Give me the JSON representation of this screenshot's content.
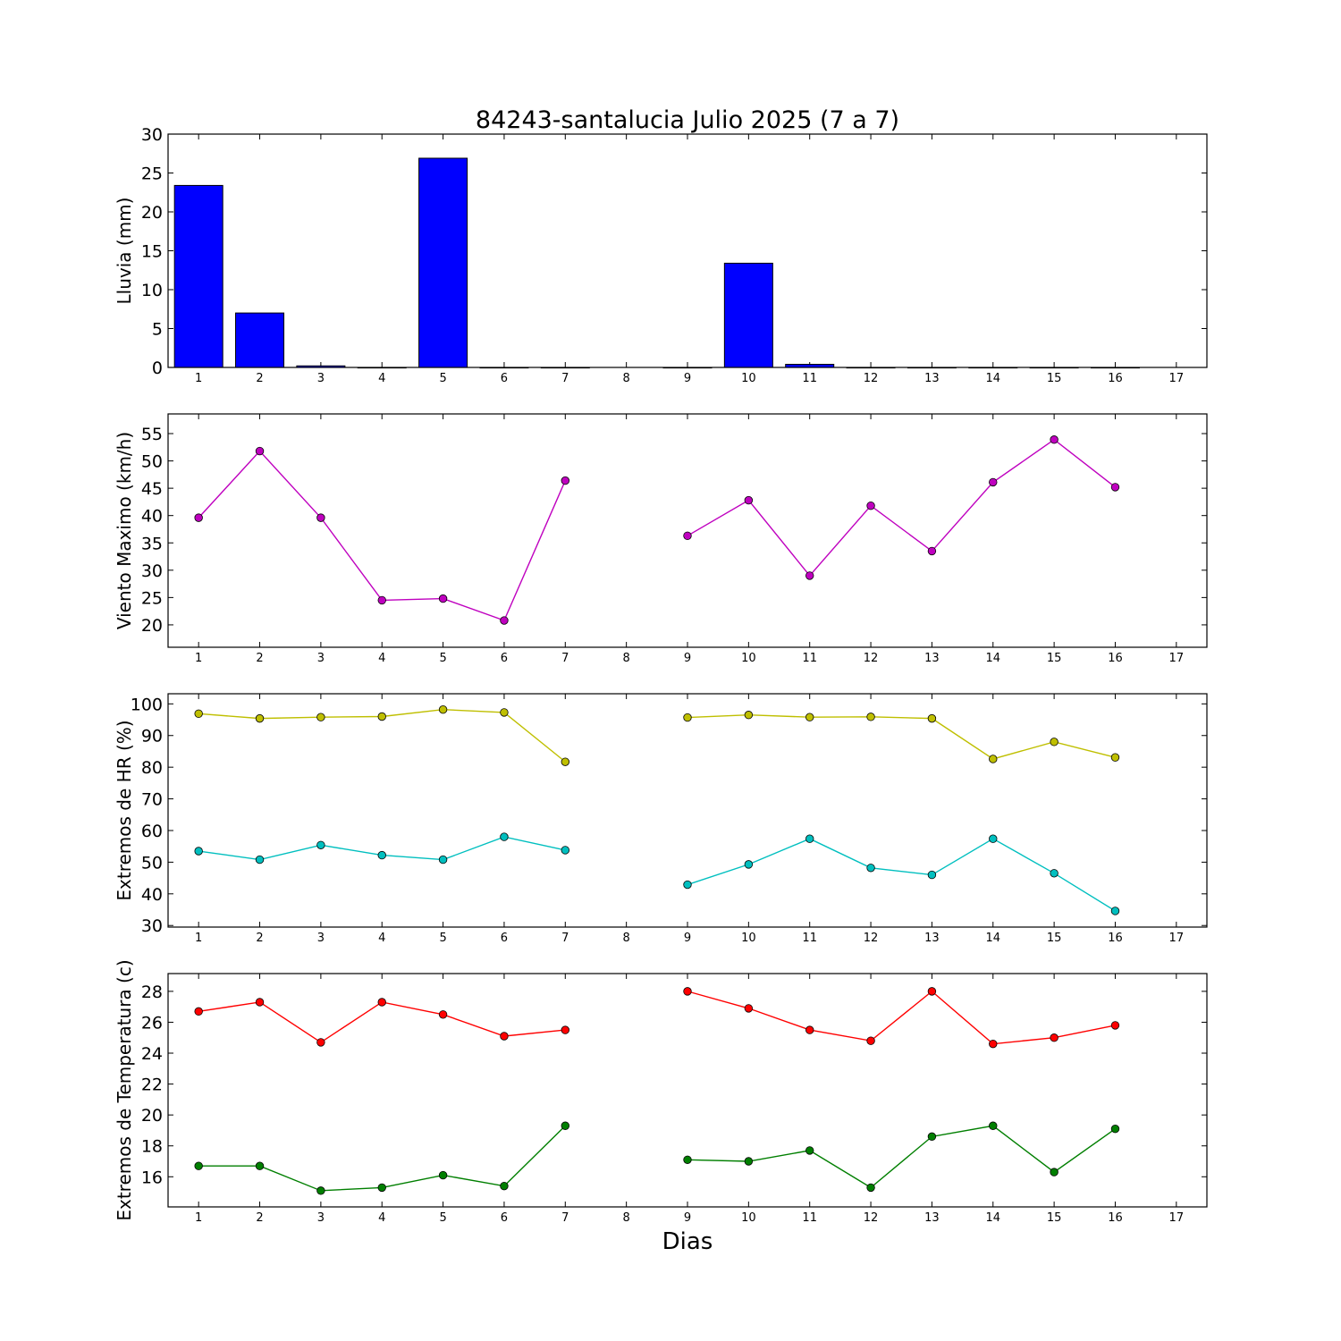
{
  "title": "84243-santalucia Julio 2025  (7 a 7)",
  "xlabel": "Dias",
  "chart_data": [
    {
      "type": "bar",
      "ylabel": "Lluvia (mm)",
      "x": [
        1,
        2,
        3,
        4,
        5,
        6,
        7,
        8,
        9,
        10,
        11,
        12,
        13,
        14,
        15,
        16,
        17
      ],
      "xticks": [
        1,
        2,
        3,
        4,
        5,
        6,
        7,
        8,
        9,
        10,
        11,
        12,
        13,
        14,
        15,
        16,
        17
      ],
      "xlim": [
        0.5,
        17.5
      ],
      "ylim": [
        0,
        30
      ],
      "yticks": [
        0,
        5,
        10,
        15,
        20,
        25,
        30
      ],
      "series": [
        {
          "values": [
            23.4,
            7.0,
            0.2,
            0.0,
            26.9,
            0.0,
            0.0,
            null,
            0.0,
            13.4,
            0.4,
            0.0,
            0.0,
            0.0,
            0.0,
            0.0,
            null
          ],
          "color": "#0000ff"
        }
      ]
    },
    {
      "type": "line",
      "ylabel": "Viento Maximo (km/h)",
      "x": [
        1,
        2,
        3,
        4,
        5,
        6,
        7,
        8,
        9,
        10,
        11,
        12,
        13,
        14,
        15,
        16
      ],
      "xticks": [
        1,
        2,
        3,
        4,
        5,
        6,
        7,
        8,
        9,
        10,
        11,
        12,
        13,
        14,
        15,
        16,
        17
      ],
      "xlim": [
        0.5,
        17.5
      ],
      "ylim": [
        15.9,
        58.6
      ],
      "yticks": [
        20,
        25,
        30,
        35,
        40,
        45,
        50,
        55
      ],
      "series": [
        {
          "values": [
            39.6,
            51.8,
            39.6,
            24.5,
            24.8,
            20.8,
            46.4,
            null,
            36.3,
            42.8,
            29.0,
            41.8,
            33.5,
            46.1,
            53.9,
            45.2
          ],
          "color": "#bf00bf"
        }
      ]
    },
    {
      "type": "line",
      "ylabel": "Extremos de HR (%)",
      "x": [
        1,
        2,
        3,
        4,
        5,
        6,
        7,
        8,
        9,
        10,
        11,
        12,
        13,
        14,
        15,
        16
      ],
      "xticks": [
        1,
        2,
        3,
        4,
        5,
        6,
        7,
        8,
        9,
        10,
        11,
        12,
        13,
        14,
        15,
        16,
        17
      ],
      "xlim": [
        0.5,
        17.5
      ],
      "ylim": [
        29.5,
        103.2
      ],
      "yticks": [
        30,
        40,
        50,
        60,
        70,
        80,
        90,
        100
      ],
      "series": [
        {
          "values": [
            96.9,
            95.4,
            95.8,
            96.0,
            98.2,
            97.3,
            81.7,
            null,
            95.7,
            96.5,
            95.8,
            95.9,
            95.4,
            82.6,
            88.0,
            83.1
          ],
          "color": "#bfbf00"
        },
        {
          "values": [
            53.5,
            50.8,
            55.4,
            52.2,
            50.8,
            58.0,
            53.8,
            null,
            42.9,
            49.3,
            57.4,
            48.2,
            46.0,
            57.4,
            46.5,
            34.6
          ],
          "color": "#00bfbf"
        }
      ]
    },
    {
      "type": "line",
      "ylabel": "Extremos de Temperatura (c)",
      "x": [
        1,
        2,
        3,
        4,
        5,
        6,
        7,
        8,
        9,
        10,
        11,
        12,
        13,
        14,
        15,
        16
      ],
      "xticks": [
        1,
        2,
        3,
        4,
        5,
        6,
        7,
        8,
        9,
        10,
        11,
        12,
        13,
        14,
        15,
        16,
        17
      ],
      "xlim": [
        0.5,
        17.5
      ],
      "ylim": [
        14.05,
        29.15
      ],
      "yticks": [
        16,
        18,
        20,
        22,
        24,
        26,
        28
      ],
      "series": [
        {
          "values": [
            26.7,
            27.3,
            24.7,
            27.3,
            26.5,
            25.1,
            25.5,
            null,
            28.0,
            26.9,
            25.5,
            24.8,
            28.0,
            24.6,
            25.0,
            25.8
          ],
          "color": "#ff0000"
        },
        {
          "values": [
            16.7,
            16.7,
            15.1,
            15.3,
            16.1,
            15.4,
            19.3,
            null,
            17.1,
            17.0,
            17.7,
            15.3,
            18.6,
            19.3,
            16.3,
            19.1
          ],
          "color": "#007f00"
        }
      ]
    }
  ]
}
